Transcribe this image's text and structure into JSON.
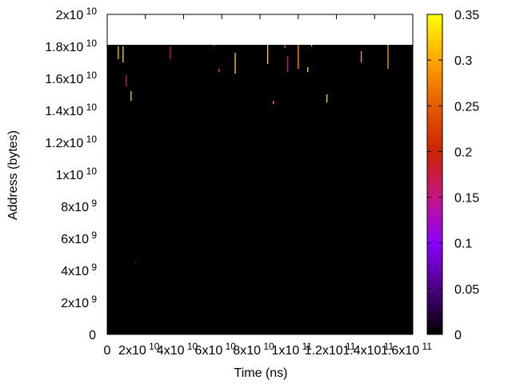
{
  "chart_data": {
    "type": "heatmap",
    "title": "",
    "xlabel": "Time (ns)",
    "ylabel": "Address (bytes)",
    "x_tick_labels": [
      {
        "value": 0,
        "mant": "0",
        "exp": ""
      },
      {
        "value": 20000000000.0,
        "mant": "2x10",
        "exp": "10"
      },
      {
        "value": 40000000000.0,
        "mant": "4x10",
        "exp": "10"
      },
      {
        "value": 60000000000.0,
        "mant": "6x10",
        "exp": "10"
      },
      {
        "value": 80000000000.0,
        "mant": "8x10",
        "exp": "10"
      },
      {
        "value": 100000000000.0,
        "mant": "1x10",
        "exp": "11"
      },
      {
        "value": 120000000000.0,
        "mant": "1.2x10",
        "exp": "11"
      },
      {
        "value": 140000000000.0,
        "mant": "1.4x10",
        "exp": "11"
      },
      {
        "value": 160000000000.0,
        "mant": "1.6x10",
        "exp": "11"
      }
    ],
    "y_tick_labels": [
      {
        "value": 0,
        "mant": "0",
        "exp": ""
      },
      {
        "value": 2000000000.0,
        "mant": "2x10",
        "exp": "9"
      },
      {
        "value": 4000000000.0,
        "mant": "4x10",
        "exp": "9"
      },
      {
        "value": 6000000000.0,
        "mant": "6x10",
        "exp": "9"
      },
      {
        "value": 8000000000.0,
        "mant": "8x10",
        "exp": "9"
      },
      {
        "value": 10000000000.0,
        "mant": "1x10",
        "exp": "10"
      },
      {
        "value": 12000000000.0,
        "mant": "1.2x10",
        "exp": "10"
      },
      {
        "value": 14000000000.0,
        "mant": "1.4x10",
        "exp": "10"
      },
      {
        "value": 16000000000.0,
        "mant": "1.6x10",
        "exp": "10"
      },
      {
        "value": 18000000000.0,
        "mant": "1.8x10",
        "exp": "10"
      },
      {
        "value": 20000000000.0,
        "mant": "2x10",
        "exp": "10"
      }
    ],
    "xlim": [
      0,
      160000000000.0
    ],
    "ylim": [
      0,
      20000000000.0
    ],
    "data_extent": {
      "x": [
        0,
        160000000000.0
      ],
      "y": [
        0,
        18100000000.0
      ]
    },
    "background_value": 0,
    "colorbar": {
      "range": [
        0,
        0.35
      ],
      "ticks": [
        "0",
        "0.05",
        "0.1",
        "0.15",
        "0.2",
        "0.25",
        "0.3",
        "0.35"
      ],
      "palette": [
        "#000000",
        "#4b0082",
        "#8b00ff",
        "#c71585",
        "#cc2200",
        "#e65c00",
        "#ffa500",
        "#ffff00"
      ]
    },
    "grid": false,
    "hot_cells": [
      {
        "x": 5800000000.0,
        "y0": 17200000000.0,
        "y1": 18000000000.0,
        "value": 0.32
      },
      {
        "x": 8300000000.0,
        "y0": 17000000000.0,
        "y1": 18000000000.0,
        "value": 0.33
      },
      {
        "x": 10000000000.0,
        "y0": 15500000000.0,
        "y1": 16200000000.0,
        "value": 0.15
      },
      {
        "x": 12500000000.0,
        "y0": 14600000000.0,
        "y1": 15200000000.0,
        "value": 0.33
      },
      {
        "x": 14500000000.0,
        "y0": 4400000000.0,
        "y1": 4600000000.0,
        "value": 0.04
      },
      {
        "x": 33000000000.0,
        "y0": 17200000000.0,
        "y1": 18000000000.0,
        "value": 0.17
      },
      {
        "x": 56000000000.0,
        "y0": 18000000000.0,
        "y1": 18100000000.0,
        "value": 0.2
      },
      {
        "x": 58500000000.0,
        "y0": 16400000000.0,
        "y1": 16600000000.0,
        "value": 0.25
      },
      {
        "x": 67000000000.0,
        "y0": 16300000000.0,
        "y1": 17600000000.0,
        "value": 0.33
      },
      {
        "x": 84000000000.0,
        "y0": 16900000000.0,
        "y1": 18100000000.0,
        "value": 0.33
      },
      {
        "x": 87000000000.0,
        "y0": 14400000000.0,
        "y1": 14600000000.0,
        "value": 0.28
      },
      {
        "x": 93000000000.0,
        "y0": 17900000000.0,
        "y1": 18100000000.0,
        "value": 0.25
      },
      {
        "x": 94500000000.0,
        "y0": 16400000000.0,
        "y1": 17400000000.0,
        "value": 0.15
      },
      {
        "x": 100000000000.0,
        "y0": 16600000000.0,
        "y1": 18100000000.0,
        "value": 0.3
      },
      {
        "x": 105000000000.0,
        "y0": 16400000000.0,
        "y1": 16700000000.0,
        "value": 0.33
      },
      {
        "x": 107000000000.0,
        "y0": 18000000000.0,
        "y1": 18100000000.0,
        "value": 0.3
      },
      {
        "x": 115000000000.0,
        "y0": 14500000000.0,
        "y1": 15000000000.0,
        "value": 0.33
      },
      {
        "x": 133000000000.0,
        "y0": 17000000000.0,
        "y1": 17700000000.0,
        "value": 0.3
      },
      {
        "x": 147000000000.0,
        "y0": 16600000000.0,
        "y1": 18100000000.0,
        "value": 0.3
      }
    ]
  }
}
